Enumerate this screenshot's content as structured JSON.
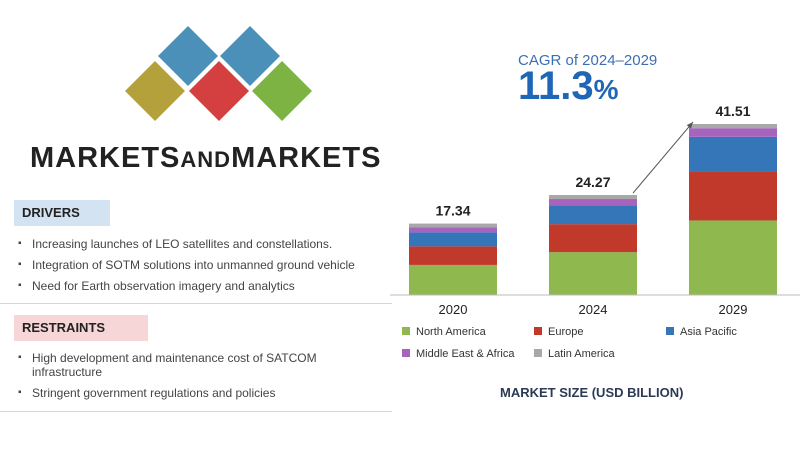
{
  "brand": {
    "part1": "MARKETS",
    "part2": "AND",
    "part3": "MARKETS"
  },
  "drivers": {
    "title": "DRIVERS",
    "items": [
      "Increasing launches of LEO satellites and constellations.",
      "Integration of SOTM solutions into unmanned ground vehicle",
      "Need for Earth observation imagery and analytics"
    ]
  },
  "restraints": {
    "title": "RESTRAINTS",
    "items": [
      "High development and maintenance cost of SATCOM infrastructure",
      "Stringent government regulations and policies"
    ]
  },
  "cagr": {
    "label": "CAGR of 2024–2029",
    "value": "11.3",
    "unit": "%"
  },
  "colors": {
    "logo": [
      "#4a90b8",
      "#4a90b8",
      "#d4403f",
      "#b5a13c",
      "#7cb342"
    ]
  },
  "chart_data": {
    "type": "bar",
    "stacked": true,
    "categories": [
      "2020",
      "2024",
      "2029"
    ],
    "totals": [
      17.34,
      24.27,
      41.51
    ],
    "series": [
      {
        "name": "North America",
        "color": "#8fb84f",
        "values": [
          7.3,
          10.4,
          18.1
        ]
      },
      {
        "name": "Europe",
        "color": "#c0392b",
        "values": [
          4.5,
          6.8,
          11.9
        ]
      },
      {
        "name": "Asia Pacific",
        "color": "#3576b9",
        "values": [
          3.4,
          4.6,
          8.4
        ]
      },
      {
        "name": "Middle East & Africa",
        "color": "#a764bf",
        "values": [
          1.2,
          1.5,
          2.1
        ]
      },
      {
        "name": "Latin America",
        "color": "#a8a8a8",
        "values": [
          0.94,
          0.97,
          1.01
        ]
      }
    ],
    "xlabel": "MARKET SIZE (USD BILLION)",
    "ylim": [
      0,
      42
    ],
    "grid": false,
    "legend": "bottom"
  }
}
